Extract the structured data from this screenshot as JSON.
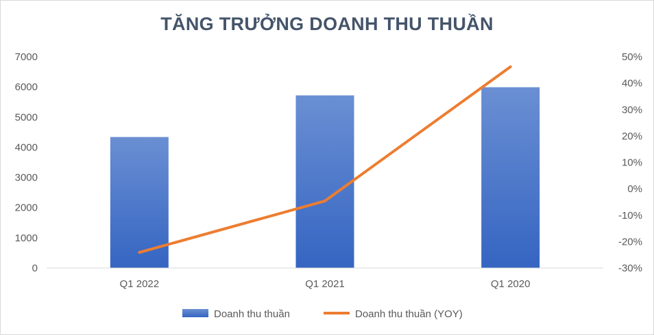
{
  "chart_data": {
    "type": "bar",
    "title": "TĂNG TRƯỞNG DOANH THU THUẦN",
    "categories": [
      "Q1 2022",
      "Q1 2021",
      "Q1 2020"
    ],
    "series": [
      {
        "name": "Doanh thu thuần",
        "type": "bar",
        "axis": "left",
        "values": [
          4340,
          5720,
          5990
        ]
      },
      {
        "name": "Doanh thu thuần (YOY)",
        "type": "line",
        "axis": "right",
        "values": [
          -24.1,
          -4.6,
          46.2
        ]
      }
    ],
    "y_left": {
      "ylim": [
        0,
        7000
      ],
      "ticks": [
        "0",
        "1000",
        "2000",
        "3000",
        "4000",
        "5000",
        "6000",
        "7000"
      ]
    },
    "y_right": {
      "ylim": [
        -30,
        50
      ],
      "ticks": [
        "-30%",
        "-20%",
        "-10%",
        "0%",
        "10%",
        "20%",
        "30%",
        "40%",
        "50%"
      ]
    },
    "grid": false,
    "legend_position": "bottom",
    "colors": {
      "bar_top": "#6a8fd3",
      "bar_bottom": "#3565c2",
      "line": "#ed7d31",
      "axis": "#d9d9d9",
      "text": "#595959",
      "title": "#44546a"
    }
  }
}
